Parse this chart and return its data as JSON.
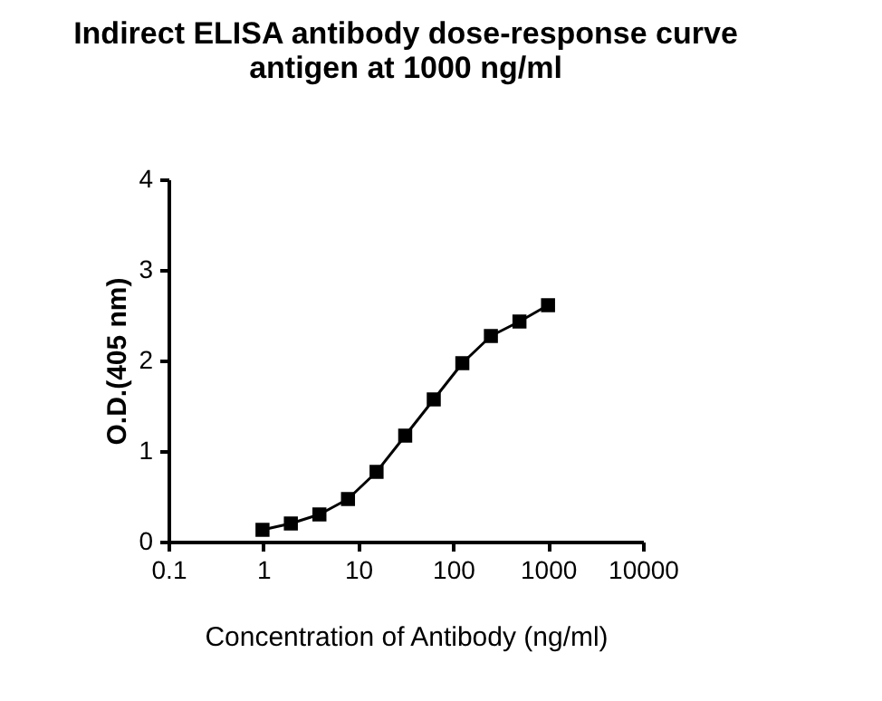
{
  "chart_data": {
    "type": "line",
    "title": [
      "Indirect ELISA antibody dose-response curve",
      "antigen at 1000 ng/ml"
    ],
    "xlabel": "Concentration of Antibody (ng/ml)",
    "ylabel": "O.D.(405 nm)",
    "x": [
      0.98,
      1.95,
      3.9,
      7.8,
      15.6,
      31.25,
      62.5,
      125,
      250,
      500,
      1000
    ],
    "series": [
      {
        "color": "#000000",
        "values": [
          0.13,
          0.2,
          0.3,
          0.47,
          0.77,
          1.17,
          1.57,
          1.97,
          2.27,
          2.43,
          2.61
        ]
      }
    ],
    "log": "x",
    "xlim": [
      0.1,
      10000
    ],
    "xticks": [
      0.1,
      1,
      10,
      100,
      1000,
      10000
    ],
    "ylim": [
      0,
      4
    ],
    "yticks": [
      0,
      1,
      2,
      3,
      4
    ],
    "grid": false,
    "marker": "square",
    "line_style": "solid"
  }
}
